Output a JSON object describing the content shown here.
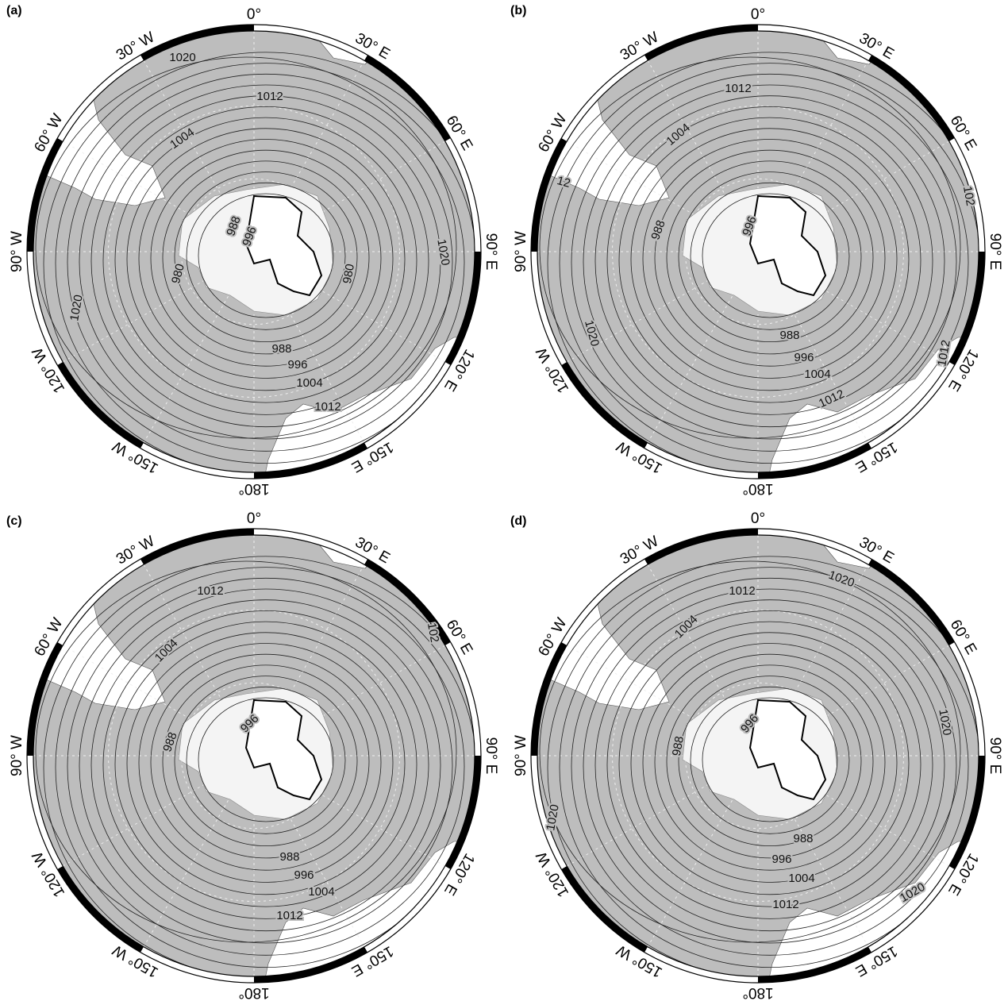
{
  "panels": [
    {
      "label": "(a)",
      "lon_labels": [
        "0°",
        "30° E",
        "60° E",
        "90° E",
        "120° E",
        "150° E",
        "180°",
        "150° W",
        "120° W",
        "90° W",
        "60° W",
        "30° W"
      ],
      "contour_labels": [
        "1020",
        "1012",
        "1004",
        "988",
        "996",
        "980",
        "980",
        "1020",
        "1020",
        "988",
        "996",
        "1004",
        "1012"
      ]
    },
    {
      "label": "(b)",
      "lon_labels": [
        "0°",
        "30° E",
        "60° E",
        "90° E",
        "120° E",
        "150° E",
        "180°",
        "150° W",
        "120° W",
        "90° W",
        "60° W",
        "30° W"
      ],
      "contour_labels": [
        "1012",
        "1004",
        "988",
        "996",
        "1020",
        "988",
        "996",
        "1004",
        "1012",
        "12",
        "102",
        "1012"
      ]
    },
    {
      "label": "(c)",
      "lon_labels": [
        "0°",
        "30° E",
        "60° E",
        "90° E",
        "120° E",
        "150° E",
        "180°",
        "150° W",
        "120° W",
        "90° W",
        "60° W",
        "30° W"
      ],
      "contour_labels": [
        "1012",
        "1004",
        "988",
        "996",
        "988",
        "996",
        "1004",
        "1012",
        "102"
      ]
    },
    {
      "label": "(d)",
      "lon_labels": [
        "0°",
        "30° E",
        "60° E",
        "90° E",
        "120° E",
        "150° E",
        "180°",
        "150° W",
        "120° W",
        "90° W",
        "60° W",
        "30° W"
      ],
      "contour_labels": [
        "1020",
        "1012",
        "1004",
        "988",
        "996",
        "1020",
        "1020",
        "988",
        "996",
        "1004",
        "1012",
        "1020"
      ]
    }
  ]
}
